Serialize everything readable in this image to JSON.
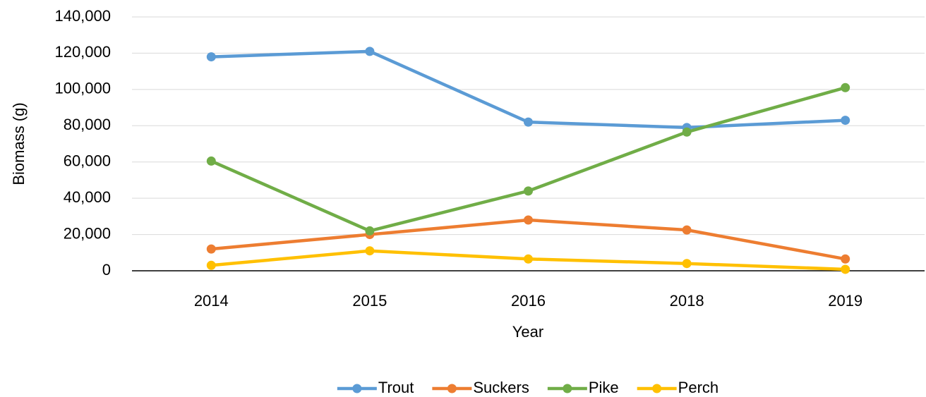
{
  "chart_data": {
    "type": "line",
    "categories": [
      "2014",
      "2015",
      "2016",
      "2018",
      "2019"
    ],
    "series": [
      {
        "name": "Trout",
        "color": "#5b9bd5",
        "values": [
          118000,
          121000,
          82000,
          79000,
          83000
        ]
      },
      {
        "name": "Suckers",
        "color": "#ed7d31",
        "values": [
          12000,
          20000,
          28000,
          22500,
          6500
        ]
      },
      {
        "name": "Pike",
        "color": "#70ad47",
        "values": [
          60500,
          22000,
          44000,
          76500,
          101000
        ]
      },
      {
        "name": "Perch",
        "color": "#ffc000",
        "values": [
          3000,
          11000,
          6500,
          4000,
          800
        ]
      }
    ],
    "ylim": [
      0,
      140000
    ],
    "yticks": [
      0,
      {
        "value": 20000,
        "label": "20,000"
      },
      {
        "value": 40000,
        "label": "40,000"
      },
      {
        "value": 60000,
        "label": "60,000"
      },
      {
        "value": 80000,
        "label": "80,000"
      },
      {
        "value": 100000,
        "label": "100,000"
      },
      {
        "value": 120000,
        "label": "120,000"
      },
      {
        "value": 140000,
        "label": "140,000"
      }
    ],
    "y_label": "Biomass (g)",
    "x_label": "Year",
    "grid": true,
    "legend": "bottom"
  }
}
